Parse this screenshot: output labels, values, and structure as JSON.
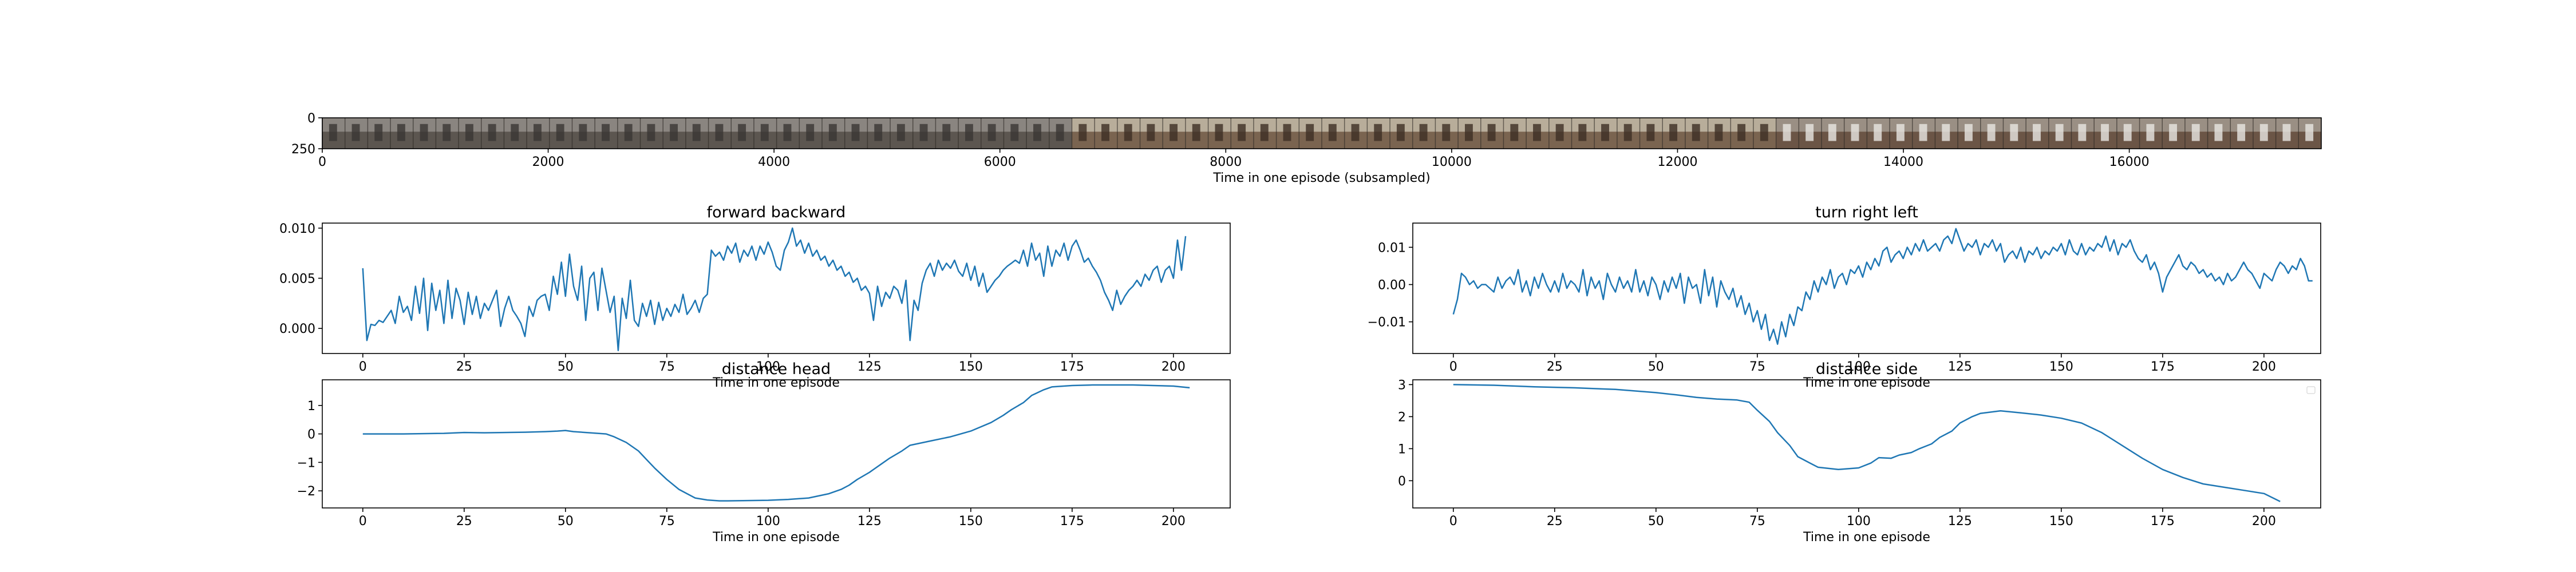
{
  "colors": {
    "line": "#1f77b4",
    "axis": "#000000",
    "background": "#ffffff"
  },
  "chart_data": [
    {
      "id": "filmstrip",
      "type": "image-strip",
      "title": "",
      "xlabel": "Time in one episode (subsampled)",
      "ylabel": "",
      "xlim": [
        0,
        17700
      ],
      "ylim": [
        250,
        0
      ],
      "xticks": [
        0,
        2000,
        4000,
        6000,
        8000,
        10000,
        12000,
        14000,
        16000
      ],
      "yticks": [
        0,
        250
      ],
      "frames": 88
    },
    {
      "id": "forward-backward",
      "type": "line",
      "title": "forward backward",
      "xlabel": "Time in one episode",
      "ylabel": "",
      "xlim": [
        -10,
        214
      ],
      "ylim": [
        -0.0025,
        0.0105
      ],
      "xticks": [
        0,
        25,
        50,
        75,
        100,
        125,
        150,
        175,
        200
      ],
      "yticks": [
        0.0,
        0.005,
        0.01
      ],
      "ytick_labels": [
        "0.000",
        "0.005",
        "0.010"
      ],
      "grid": false,
      "x_start": 0,
      "x_step": 1,
      "values": [
        0.006,
        -0.0012,
        0.0004,
        0.0003,
        0.0008,
        0.0006,
        0.0012,
        0.0018,
        0.0005,
        0.0032,
        0.0016,
        0.0022,
        0.0008,
        0.0042,
        0.0015,
        0.005,
        -0.0002,
        0.0045,
        0.0018,
        0.0038,
        0.0005,
        0.0048,
        0.001,
        0.004,
        0.0028,
        0.0004,
        0.0036,
        0.0014,
        0.0032,
        0.001,
        0.0025,
        0.0018,
        0.0028,
        0.0038,
        0.0002,
        0.002,
        0.0032,
        0.0018,
        0.0012,
        0.0005,
        -0.0008,
        0.0022,
        0.0012,
        0.0028,
        0.0032,
        0.0034,
        0.0018,
        0.0052,
        0.0034,
        0.0066,
        0.0032,
        0.0074,
        0.0042,
        0.0028,
        0.0062,
        0.0008,
        0.005,
        0.0056,
        0.0018,
        0.006,
        0.0038,
        0.0016,
        0.0032,
        -0.0022,
        0.003,
        0.001,
        0.0048,
        0.0008,
        0.0002,
        0.0025,
        0.0012,
        0.0028,
        0.0004,
        0.0026,
        0.0008,
        0.002,
        0.0012,
        0.0024,
        0.0016,
        0.0034,
        0.0014,
        0.002,
        0.0028,
        0.0016,
        0.003,
        0.0034,
        0.0078,
        0.0072,
        0.0076,
        0.0068,
        0.0082,
        0.0075,
        0.0085,
        0.0066,
        0.0078,
        0.0072,
        0.0082,
        0.0068,
        0.0082,
        0.0074,
        0.0086,
        0.0076,
        0.0062,
        0.0058,
        0.0078,
        0.0086,
        0.01,
        0.0082,
        0.0088,
        0.0075,
        0.0085,
        0.0072,
        0.0078,
        0.0068,
        0.0072,
        0.0062,
        0.0068,
        0.0058,
        0.0062,
        0.0052,
        0.0056,
        0.0046,
        0.005,
        0.0038,
        0.0042,
        0.0035,
        0.0008,
        0.0042,
        0.0022,
        0.0036,
        0.003,
        0.0042,
        0.0038,
        0.0025,
        0.0048,
        -0.0012,
        0.0028,
        0.0018,
        0.0045,
        0.0058,
        0.0065,
        0.0052,
        0.0068,
        0.0058,
        0.0065,
        0.006,
        0.0068,
        0.0057,
        0.0052,
        0.0065,
        0.0048,
        0.0062,
        0.0042,
        0.0055,
        0.0036,
        0.0042,
        0.0048,
        0.0052,
        0.0058,
        0.0062,
        0.0065,
        0.0068,
        0.0065,
        0.0078,
        0.0062,
        0.0085,
        0.0068,
        0.0075,
        0.0052,
        0.0082,
        0.0062,
        0.0078,
        0.0072,
        0.0085,
        0.0068,
        0.0082,
        0.0088,
        0.0078,
        0.0066,
        0.007,
        0.0062,
        0.0056,
        0.0048,
        0.0036,
        0.0028,
        0.0018,
        0.0038,
        0.0024,
        0.0032,
        0.0038,
        0.0042,
        0.0048,
        0.0042,
        0.0054,
        0.0048,
        0.0058,
        0.0062,
        0.0046,
        0.0058,
        0.0062,
        0.005,
        0.0088,
        0.0058,
        0.0092
      ]
    },
    {
      "id": "turn-right-left",
      "type": "line",
      "title": "turn right left",
      "xlabel": "Time in one episode",
      "ylabel": "",
      "xlim": [
        -10,
        214
      ],
      "ylim": [
        -0.0185,
        0.0165
      ],
      "xticks": [
        0,
        25,
        50,
        75,
        100,
        125,
        150,
        175,
        200
      ],
      "yticks": [
        -0.01,
        0.0,
        0.01
      ],
      "ytick_labels": [
        "−0.01",
        "0.00",
        "0.01"
      ],
      "grid": false,
      "x_start": 0,
      "x_step": 1,
      "values": [
        -0.008,
        -0.004,
        0.003,
        0.002,
        0.0,
        0.001,
        -0.001,
        0.0,
        0.0,
        -0.001,
        -0.002,
        0.002,
        -0.001,
        0.001,
        0.002,
        0.0,
        0.004,
        -0.002,
        0.001,
        -0.003,
        0.002,
        -0.001,
        0.003,
        0.0,
        -0.002,
        0.001,
        -0.002,
        0.003,
        -0.001,
        0.001,
        0.0,
        -0.002,
        0.004,
        -0.003,
        0.002,
        -0.001,
        0.001,
        -0.004,
        0.003,
        0.0,
        -0.002,
        0.002,
        -0.001,
        0.001,
        -0.002,
        0.004,
        -0.002,
        0.001,
        -0.003,
        0.002,
        0.0,
        -0.004,
        0.001,
        -0.002,
        0.002,
        -0.001,
        0.003,
        -0.005,
        0.002,
        -0.001,
        0.0,
        -0.005,
        0.004,
        -0.003,
        0.002,
        -0.006,
        0.001,
        -0.002,
        -0.004,
        -0.001,
        -0.006,
        -0.003,
        -0.008,
        -0.005,
        -0.01,
        -0.007,
        -0.012,
        -0.008,
        -0.015,
        -0.012,
        -0.016,
        -0.01,
        -0.014,
        -0.008,
        -0.011,
        -0.006,
        -0.007,
        -0.002,
        -0.004,
        0.001,
        -0.002,
        0.002,
        0.0,
        0.004,
        -0.001,
        0.002,
        0.003,
        0.0,
        0.004,
        0.003,
        0.005,
        0.002,
        0.006,
        0.004,
        0.007,
        0.005,
        0.009,
        0.01,
        0.006,
        0.008,
        0.009,
        0.007,
        0.01,
        0.008,
        0.011,
        0.009,
        0.012,
        0.009,
        0.01,
        0.011,
        0.009,
        0.012,
        0.013,
        0.011,
        0.015,
        0.012,
        0.009,
        0.011,
        0.01,
        0.012,
        0.008,
        0.011,
        0.01,
        0.012,
        0.009,
        0.011,
        0.006,
        0.008,
        0.009,
        0.007,
        0.01,
        0.006,
        0.009,
        0.008,
        0.01,
        0.007,
        0.009,
        0.008,
        0.01,
        0.009,
        0.011,
        0.008,
        0.012,
        0.009,
        0.008,
        0.011,
        0.008,
        0.01,
        0.009,
        0.011,
        0.01,
        0.013,
        0.009,
        0.012,
        0.008,
        0.011,
        0.01,
        0.012,
        0.009,
        0.007,
        0.006,
        0.008,
        0.004,
        0.006,
        0.003,
        -0.002,
        0.002,
        0.004,
        0.006,
        0.008,
        0.005,
        0.004,
        0.006,
        0.005,
        0.003,
        0.004,
        0.002,
        0.003,
        0.001,
        0.002,
        0.0,
        0.003,
        0.001,
        0.002,
        0.004,
        0.006,
        0.004,
        0.003,
        0.001,
        -0.001,
        0.003,
        0.002,
        0.001,
        0.004,
        0.006,
        0.005,
        0.003,
        0.005,
        0.004,
        0.007,
        0.005,
        0.001,
        0.001
      ]
    },
    {
      "id": "distance-head",
      "type": "line",
      "title": "distance head",
      "xlabel": "Time in one episode",
      "ylabel": "",
      "xlim": [
        -10,
        214
      ],
      "ylim": [
        -2.6,
        1.9
      ],
      "xticks": [
        0,
        25,
        50,
        75,
        100,
        125,
        150,
        175,
        200
      ],
      "yticks": [
        -2,
        -1,
        0,
        1
      ],
      "ytick_labels": [
        "−2",
        "−1",
        "0",
        "1"
      ],
      "grid": false,
      "x": [
        0,
        10,
        20,
        25,
        30,
        35,
        40,
        45,
        48,
        50,
        52,
        55,
        60,
        62,
        65,
        68,
        70,
        72,
        75,
        78,
        80,
        82,
        85,
        88,
        90,
        95,
        100,
        105,
        110,
        115,
        118,
        120,
        122,
        125,
        128,
        130,
        133,
        135,
        140,
        145,
        150,
        155,
        158,
        160,
        163,
        165,
        168,
        170,
        175,
        180,
        185,
        190,
        195,
        200,
        204
      ],
      "values": [
        0.0,
        0.0,
        0.02,
        0.05,
        0.04,
        0.05,
        0.06,
        0.08,
        0.1,
        0.12,
        0.08,
        0.05,
        0.0,
        -0.1,
        -0.3,
        -0.6,
        -0.9,
        -1.2,
        -1.6,
        -1.95,
        -2.1,
        -2.25,
        -2.32,
        -2.35,
        -2.35,
        -2.34,
        -2.33,
        -2.3,
        -2.25,
        -2.1,
        -1.95,
        -1.8,
        -1.6,
        -1.35,
        -1.05,
        -0.85,
        -0.6,
        -0.4,
        -0.25,
        -0.1,
        0.1,
        0.4,
        0.65,
        0.85,
        1.1,
        1.35,
        1.55,
        1.65,
        1.7,
        1.72,
        1.72,
        1.72,
        1.7,
        1.68,
        1.62
      ]
    },
    {
      "id": "distance-side",
      "type": "line",
      "title": "distance side",
      "xlabel": "Time in one episode",
      "ylabel": "",
      "xlim": [
        -10,
        214
      ],
      "ylim": [
        -0.85,
        3.15
      ],
      "xticks": [
        0,
        25,
        50,
        75,
        100,
        125,
        150,
        175,
        200
      ],
      "yticks": [
        0,
        1,
        2,
        3
      ],
      "ytick_labels": [
        "0",
        "1",
        "2",
        "3"
      ],
      "grid": false,
      "x": [
        0,
        10,
        20,
        30,
        40,
        50,
        55,
        60,
        65,
        70,
        73,
        75,
        78,
        80,
        83,
        85,
        88,
        90,
        95,
        100,
        103,
        105,
        108,
        110,
        113,
        115,
        118,
        120,
        123,
        125,
        128,
        130,
        135,
        140,
        145,
        150,
        155,
        160,
        165,
        170,
        175,
        180,
        185,
        190,
        195,
        200,
        204
      ],
      "values": [
        3.0,
        2.98,
        2.93,
        2.9,
        2.85,
        2.75,
        2.68,
        2.6,
        2.55,
        2.52,
        2.45,
        2.2,
        1.85,
        1.5,
        1.1,
        0.75,
        0.55,
        0.42,
        0.35,
        0.4,
        0.55,
        0.72,
        0.7,
        0.8,
        0.88,
        1.0,
        1.15,
        1.35,
        1.55,
        1.8,
        2.0,
        2.1,
        2.18,
        2.12,
        2.05,
        1.95,
        1.8,
        1.5,
        1.1,
        0.7,
        0.35,
        0.1,
        -0.1,
        -0.2,
        -0.3,
        -0.4,
        -0.65
      ]
    }
  ]
}
